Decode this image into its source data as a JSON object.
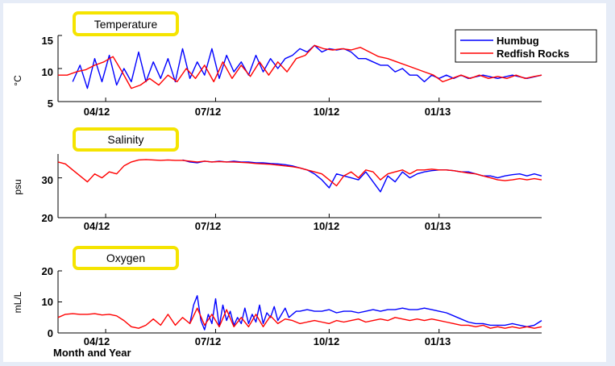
{
  "colors": {
    "background": "#e6ecf7",
    "panel": "#ffffff",
    "title_box_border": "#f5e400",
    "humbug": "#0000ff",
    "redfish_rocks": "#ff0000"
  },
  "chart_data": [
    {
      "type": "line",
      "title": "Temperature",
      "xlabel": "",
      "ylabel": "°C",
      "ylim": [
        5,
        15
      ],
      "yticks": [
        "5",
        "10",
        "15"
      ],
      "xticks": [
        "04/12",
        "07/12",
        "10/12",
        "01/13"
      ],
      "legend": {
        "placement": "top-right",
        "entries": [
          "Humbug",
          "Redfish Rocks"
        ]
      },
      "series": [
        {
          "name": "Humbug",
          "color": "#0000ff",
          "x": [
            0.4,
            0.6,
            0.8,
            1.0,
            1.2,
            1.4,
            1.6,
            1.8,
            2.0,
            2.2,
            2.4,
            2.6,
            2.8,
            3.0,
            3.2,
            3.4,
            3.6,
            3.8,
            4.0,
            4.2,
            4.4,
            4.6,
            4.8,
            5.0,
            5.2,
            5.4,
            5.6,
            5.8,
            6.0,
            6.2,
            6.4,
            6.6,
            6.8,
            7.0,
            7.2,
            7.4,
            7.6,
            7.8,
            8.0,
            8.2,
            8.4,
            8.6,
            8.8,
            9.0,
            9.2,
            9.4,
            9.6,
            9.8,
            10.0,
            10.2,
            10.4,
            10.6,
            10.8,
            11.0,
            11.2,
            11.6,
            12.0,
            12.4,
            12.8,
            13.2
          ],
          "y": [
            8.0,
            10.5,
            7.0,
            11.5,
            8.0,
            12.0,
            7.5,
            10.0,
            8.0,
            12.5,
            8.0,
            11.0,
            8.5,
            11.5,
            8.0,
            13.0,
            8.5,
            11.0,
            9.0,
            13.0,
            8.5,
            12.0,
            9.5,
            11.0,
            9.0,
            12.0,
            9.5,
            11.5,
            10.0,
            11.5,
            12.0,
            13.0,
            12.5,
            13.5,
            12.5,
            13.0,
            12.8,
            13.0,
            12.5,
            11.5,
            11.5,
            11.0,
            10.5,
            10.5,
            9.5,
            10.0,
            9.0,
            9.0,
            8.0,
            9.0,
            8.5,
            9.0,
            8.5,
            9.0,
            8.5,
            9.0,
            8.5,
            9.0,
            8.5,
            9.0
          ]
        },
        {
          "name": "Redfish Rocks",
          "color": "#ff0000",
          "x": [
            0.0,
            0.25,
            0.5,
            0.75,
            1.0,
            1.25,
            1.5,
            1.75,
            2.0,
            2.25,
            2.5,
            2.75,
            3.0,
            3.25,
            3.5,
            3.75,
            4.0,
            4.25,
            4.5,
            4.75,
            5.0,
            5.25,
            5.5,
            5.75,
            6.0,
            6.25,
            6.5,
            6.75,
            7.0,
            7.25,
            7.5,
            7.75,
            8.0,
            8.25,
            8.5,
            8.75,
            9.0,
            9.25,
            9.5,
            9.75,
            10.0,
            10.25,
            10.5,
            10.75,
            11.0,
            11.25,
            11.5,
            11.75,
            12.0,
            12.25,
            12.5,
            12.75,
            13.0,
            13.2
          ],
          "y": [
            9.0,
            9.0,
            9.5,
            9.8,
            10.5,
            11.0,
            11.8,
            9.5,
            7.0,
            7.5,
            8.5,
            7.5,
            9.0,
            8.0,
            10.0,
            8.5,
            10.5,
            8.0,
            11.0,
            8.5,
            10.5,
            8.8,
            11.0,
            9.0,
            11.0,
            9.5,
            11.5,
            12.0,
            13.5,
            13.0,
            12.8,
            13.0,
            12.8,
            13.2,
            12.5,
            11.8,
            11.5,
            11.0,
            10.5,
            10.0,
            9.5,
            9.0,
            8.0,
            8.5,
            9.0,
            8.5,
            9.0,
            8.5,
            8.8,
            8.5,
            9.0,
            8.5,
            8.8,
            9.0
          ]
        }
      ]
    },
    {
      "type": "line",
      "title": "Salinity",
      "xlabel": "",
      "ylabel": "psu",
      "ylim": [
        20,
        36
      ],
      "yticks": [
        "20",
        "30"
      ],
      "xticks": [
        "04/12",
        "07/12",
        "10/12",
        "01/13"
      ],
      "series": [
        {
          "name": "Humbug",
          "color": "#0000ff",
          "x": [
            3.4,
            3.6,
            3.8,
            4.0,
            4.2,
            4.4,
            4.6,
            4.8,
            5.0,
            5.2,
            5.4,
            5.6,
            5.8,
            6.0,
            6.2,
            6.4,
            6.6,
            6.8,
            7.0,
            7.2,
            7.4,
            7.6,
            7.8,
            8.0,
            8.2,
            8.4,
            8.6,
            8.8,
            9.0,
            9.2,
            9.4,
            9.6,
            9.8,
            10.0,
            10.2,
            10.4,
            10.6,
            10.8,
            11.0,
            11.2,
            11.4,
            11.6,
            11.8,
            12.0,
            12.2,
            12.4,
            12.6,
            12.8,
            13.0,
            13.2
          ],
          "y": [
            34.5,
            34.0,
            33.8,
            34.2,
            34.0,
            34.2,
            34.0,
            34.2,
            34.0,
            34.0,
            33.8,
            33.8,
            33.6,
            33.5,
            33.3,
            33.0,
            32.5,
            32.0,
            31.0,
            29.5,
            27.5,
            31.0,
            30.5,
            30.0,
            29.5,
            31.5,
            29.0,
            26.5,
            30.5,
            29.0,
            31.5,
            30.0,
            31.0,
            31.5,
            31.8,
            32.0,
            32.0,
            31.8,
            31.5,
            31.5,
            31.0,
            30.5,
            30.5,
            30.0,
            30.5,
            30.8,
            31.0,
            30.5,
            31.0,
            30.5
          ]
        },
        {
          "name": "Redfish Rocks",
          "color": "#ff0000",
          "x": [
            0.0,
            0.2,
            0.4,
            0.6,
            0.8,
            1.0,
            1.2,
            1.4,
            1.6,
            1.8,
            2.0,
            2.2,
            2.4,
            2.6,
            2.8,
            3.0,
            3.2,
            3.4,
            3.6,
            3.8,
            4.0,
            4.2,
            4.4,
            4.6,
            4.8,
            5.0,
            5.2,
            5.4,
            5.6,
            5.8,
            6.0,
            6.2,
            6.4,
            6.6,
            6.8,
            7.0,
            7.2,
            7.4,
            7.6,
            7.8,
            8.0,
            8.2,
            8.4,
            8.6,
            8.8,
            9.0,
            9.2,
            9.4,
            9.6,
            9.8,
            10.0,
            10.2,
            10.4,
            10.6,
            10.8,
            11.0,
            11.2,
            11.4,
            11.6,
            11.8,
            12.0,
            12.2,
            12.4,
            12.6,
            12.8,
            13.0,
            13.2
          ],
          "y": [
            34.0,
            33.5,
            32.0,
            30.5,
            29.0,
            31.0,
            30.0,
            31.5,
            31.0,
            33.0,
            34.0,
            34.5,
            34.6,
            34.5,
            34.4,
            34.5,
            34.4,
            34.4,
            34.2,
            34.0,
            34.2,
            34.0,
            34.1,
            34.0,
            34.0,
            33.9,
            33.8,
            33.6,
            33.5,
            33.4,
            33.2,
            33.0,
            32.8,
            32.5,
            32.0,
            31.5,
            31.0,
            29.5,
            28.0,
            30.5,
            31.5,
            30.0,
            32.0,
            31.5,
            29.5,
            31.0,
            31.5,
            32.0,
            31.0,
            32.0,
            32.0,
            32.2,
            32.0,
            32.0,
            31.8,
            31.5,
            31.2,
            31.0,
            30.5,
            30.0,
            29.5,
            29.3,
            29.5,
            29.8,
            29.5,
            29.8,
            29.5
          ]
        }
      ]
    },
    {
      "type": "line",
      "title": "Oxygen",
      "xlabel": "Month and Year",
      "ylabel": "mL/L",
      "ylim": [
        0,
        20
      ],
      "yticks": [
        "0",
        "10",
        "20"
      ],
      "xticks": [
        "04/12",
        "07/12",
        "10/12",
        "01/13"
      ],
      "series": [
        {
          "name": "Humbug",
          "color": "#0000ff",
          "x": [
            3.6,
            3.7,
            3.8,
            3.9,
            4.0,
            4.1,
            4.2,
            4.3,
            4.4,
            4.5,
            4.6,
            4.7,
            4.8,
            4.9,
            5.0,
            5.1,
            5.2,
            5.3,
            5.4,
            5.5,
            5.6,
            5.7,
            5.8,
            5.9,
            6.0,
            6.1,
            6.2,
            6.3,
            6.4,
            6.5,
            6.6,
            6.8,
            7.0,
            7.2,
            7.4,
            7.6,
            7.8,
            8.0,
            8.2,
            8.4,
            8.6,
            8.8,
            9.0,
            9.2,
            9.4,
            9.6,
            9.8,
            10.0,
            10.2,
            10.4,
            10.6,
            10.8,
            11.0,
            11.2,
            11.4,
            11.6,
            11.8,
            12.0,
            12.2,
            12.4,
            12.6,
            12.8,
            13.0,
            13.2
          ],
          "y": [
            3.0,
            9.0,
            12.0,
            4.0,
            1.0,
            6.0,
            3.0,
            11.0,
            2.0,
            9.0,
            4.0,
            7.0,
            2.5,
            5.0,
            3.0,
            8.0,
            3.0,
            6.0,
            3.5,
            9.0,
            3.0,
            6.5,
            5.0,
            8.5,
            4.0,
            6.0,
            8.0,
            5.0,
            6.0,
            7.0,
            7.0,
            7.5,
            7.0,
            7.0,
            7.5,
            6.5,
            7.0,
            7.0,
            6.5,
            7.0,
            7.5,
            7.0,
            7.5,
            7.5,
            8.0,
            7.5,
            7.5,
            8.0,
            7.5,
            7.0,
            6.5,
            5.5,
            4.5,
            3.5,
            3.0,
            3.0,
            2.5,
            2.5,
            2.5,
            3.0,
            2.5,
            2.0,
            2.5,
            4.0
          ]
        },
        {
          "name": "Redfish Rocks",
          "color": "#ff0000",
          "x": [
            0.0,
            0.2,
            0.4,
            0.6,
            0.8,
            1.0,
            1.2,
            1.4,
            1.6,
            1.8,
            2.0,
            2.2,
            2.4,
            2.6,
            2.8,
            3.0,
            3.2,
            3.4,
            3.6,
            3.8,
            4.0,
            4.2,
            4.4,
            4.6,
            4.8,
            5.0,
            5.2,
            5.4,
            5.6,
            5.8,
            6.0,
            6.2,
            6.4,
            6.6,
            6.8,
            7.0,
            7.2,
            7.4,
            7.6,
            7.8,
            8.0,
            8.2,
            8.4,
            8.6,
            8.8,
            9.0,
            9.2,
            9.4,
            9.6,
            9.8,
            10.0,
            10.2,
            10.4,
            10.6,
            10.8,
            11.0,
            11.2,
            11.4,
            11.6,
            11.8,
            12.0,
            12.2,
            12.4,
            12.6,
            12.8,
            13.0,
            13.2
          ],
          "y": [
            5.0,
            6.0,
            6.2,
            6.0,
            6.0,
            6.2,
            5.8,
            6.0,
            5.5,
            4.0,
            2.0,
            1.5,
            2.5,
            4.5,
            2.5,
            6.0,
            2.5,
            5.0,
            3.0,
            8.0,
            2.5,
            6.0,
            2.0,
            7.5,
            2.0,
            5.0,
            2.0,
            6.0,
            2.0,
            5.5,
            3.0,
            4.5,
            4.0,
            3.0,
            3.5,
            4.0,
            3.5,
            3.0,
            4.0,
            3.5,
            4.0,
            4.5,
            3.5,
            4.0,
            4.5,
            4.0,
            5.0,
            4.5,
            4.0,
            4.5,
            4.0,
            4.5,
            4.0,
            3.5,
            3.0,
            2.5,
            2.5,
            2.0,
            2.5,
            1.5,
            2.0,
            1.5,
            2.0,
            1.5,
            2.0,
            1.5,
            2.0
          ]
        }
      ]
    }
  ]
}
